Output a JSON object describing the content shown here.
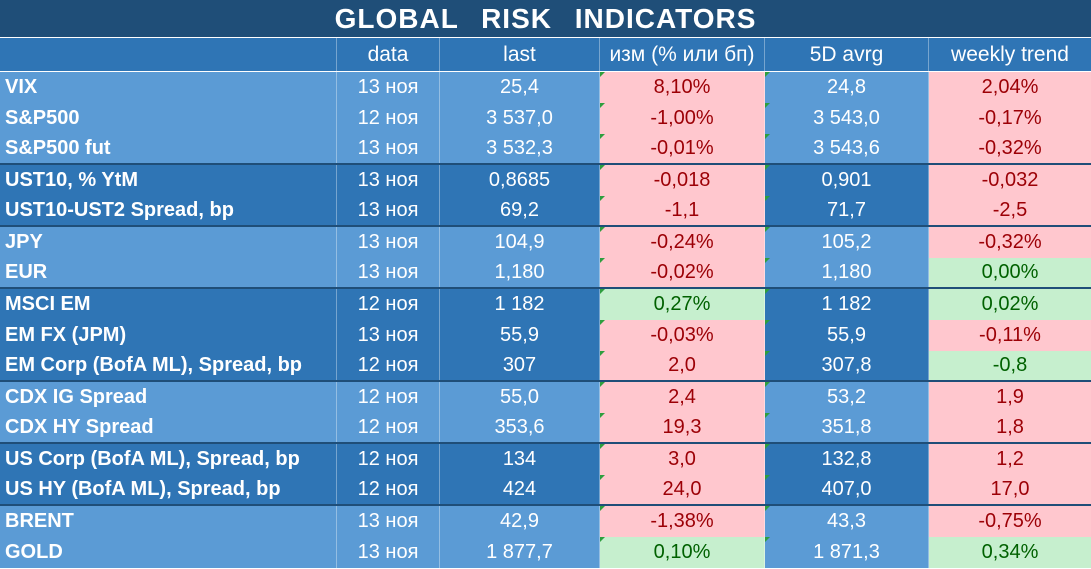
{
  "title": "GLOBAL   RISK   INDICATORS",
  "headers": [
    "",
    "data",
    "last",
    "изм (% или бп)",
    "5D avrg",
    "weekly trend"
  ],
  "rows": [
    {
      "name": "VIX",
      "date": "13 ноя",
      "last": "25,4",
      "chg": "8,10%",
      "avg": "24,8",
      "trend": "2,04%",
      "chg_color": "red",
      "trend_color": "red",
      "shade": "light",
      "group_end": false
    },
    {
      "name": "S&P500",
      "date": "12 ноя",
      "last": "3 537,0",
      "chg": "-1,00%",
      "avg": "3 543,0",
      "trend": "-0,17%",
      "chg_color": "red",
      "trend_color": "red",
      "shade": "light",
      "group_end": false
    },
    {
      "name": "S&P500 fut",
      "date": "13 ноя",
      "last": "3 532,3",
      "chg": "-0,01%",
      "avg": "3 543,6",
      "trend": "-0,32%",
      "chg_color": "red",
      "trend_color": "red",
      "shade": "light",
      "group_end": true
    },
    {
      "name": "UST10, % YtM",
      "date": "13 ноя",
      "last": "0,8685",
      "chg": "-0,018",
      "avg": "0,901",
      "trend": "-0,032",
      "chg_color": "red",
      "trend_color": "red",
      "shade": "dark",
      "group_end": false
    },
    {
      "name": "UST10-UST2 Spread, bp",
      "date": "13 ноя",
      "last": "69,2",
      "chg": "-1,1",
      "avg": "71,7",
      "trend": "-2,5",
      "chg_color": "red",
      "trend_color": "red",
      "shade": "dark",
      "group_end": true
    },
    {
      "name": "JPY",
      "date": "13 ноя",
      "last": "104,9",
      "chg": "-0,24%",
      "avg": "105,2",
      "trend": "-0,32%",
      "chg_color": "red",
      "trend_color": "red",
      "shade": "light",
      "group_end": false
    },
    {
      "name": "EUR",
      "date": "13 ноя",
      "last": "1,180",
      "chg": "-0,02%",
      "avg": "1,180",
      "trend": "0,00%",
      "chg_color": "red",
      "trend_color": "green",
      "shade": "light",
      "group_end": true
    },
    {
      "name": "MSCI EM",
      "date": "12 ноя",
      "last": "1 182",
      "chg": "0,27%",
      "avg": "1 182",
      "trend": "0,02%",
      "chg_color": "green",
      "trend_color": "green",
      "shade": "dark",
      "group_end": false
    },
    {
      "name": "EM FX (JPM)",
      "date": "13 ноя",
      "last": "55,9",
      "chg": "-0,03%",
      "avg": "55,9",
      "trend": "-0,11%",
      "chg_color": "red",
      "trend_color": "red",
      "shade": "dark",
      "group_end": false
    },
    {
      "name": "EM Corp (BofA ML), Spread, bp",
      "date": "12 ноя",
      "last": "307",
      "chg": "2,0",
      "avg": "307,8",
      "trend": "-0,8",
      "chg_color": "red",
      "trend_color": "green",
      "shade": "dark",
      "group_end": true
    },
    {
      "name": "CDX IG Spread",
      "date": "12 ноя",
      "last": "55,0",
      "chg": "2,4",
      "avg": "53,2",
      "trend": "1,9",
      "chg_color": "red",
      "trend_color": "red",
      "shade": "light",
      "group_end": false
    },
    {
      "name": "CDX HY Spread",
      "date": "12 ноя",
      "last": "353,6",
      "chg": "19,3",
      "avg": "351,8",
      "trend": "1,8",
      "chg_color": "red",
      "trend_color": "red",
      "shade": "light",
      "group_end": true
    },
    {
      "name": "US Corp (BofA ML), Spread, bp",
      "date": "12 ноя",
      "last": "134",
      "chg": "3,0",
      "avg": "132,8",
      "trend": "1,2",
      "chg_color": "red",
      "trend_color": "red",
      "shade": "dark",
      "group_end": false
    },
    {
      "name": "US HY (BofA ML), Spread, bp",
      "date": "12 ноя",
      "last": "424",
      "chg": "24,0",
      "avg": "407,0",
      "trend": "17,0",
      "chg_color": "red",
      "trend_color": "red",
      "shade": "dark",
      "group_end": true
    },
    {
      "name": "BRENT",
      "date": "13 ноя",
      "last": "42,9",
      "chg": "-1,38%",
      "avg": "43,3",
      "trend": "-0,75%",
      "chg_color": "red",
      "trend_color": "red",
      "shade": "light",
      "group_end": false
    },
    {
      "name": "GOLD",
      "date": "13 ноя",
      "last": "1 877,7",
      "chg": "0,10%",
      "avg": "1 871,3",
      "trend": "0,34%",
      "chg_color": "green",
      "trend_color": "green",
      "shade": "light",
      "group_end": false
    }
  ]
}
